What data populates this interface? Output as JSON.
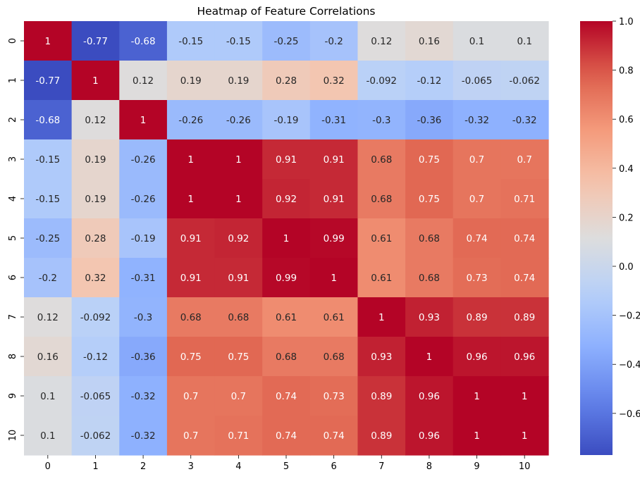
{
  "chart_data": {
    "type": "heatmap",
    "title": "Heatmap of Feature Correlations",
    "xlabel": "",
    "ylabel": "",
    "row_labels": [
      "0",
      "1",
      "2",
      "3",
      "4",
      "5",
      "6",
      "7",
      "8",
      "9",
      "10"
    ],
    "col_labels": [
      "0",
      "1",
      "2",
      "3",
      "4",
      "5",
      "6",
      "7",
      "8",
      "9",
      "10"
    ],
    "matrix": [
      [
        1,
        -0.77,
        -0.68,
        -0.15,
        -0.15,
        -0.25,
        -0.2,
        0.12,
        0.16,
        0.1,
        0.1
      ],
      [
        -0.77,
        1,
        0.12,
        0.19,
        0.19,
        0.28,
        0.32,
        -0.092,
        -0.12,
        -0.065,
        -0.062
      ],
      [
        -0.68,
        0.12,
        1,
        -0.26,
        -0.26,
        -0.19,
        -0.31,
        -0.3,
        -0.36,
        -0.32,
        -0.32
      ],
      [
        -0.15,
        0.19,
        -0.26,
        1,
        1,
        0.91,
        0.91,
        0.68,
        0.75,
        0.7,
        0.7
      ],
      [
        -0.15,
        0.19,
        -0.26,
        1,
        1,
        0.92,
        0.91,
        0.68,
        0.75,
        0.7,
        0.71
      ],
      [
        -0.25,
        0.28,
        -0.19,
        0.91,
        0.92,
        1,
        0.99,
        0.61,
        0.68,
        0.74,
        0.74
      ],
      [
        -0.2,
        0.32,
        -0.31,
        0.91,
        0.91,
        0.99,
        1,
        0.61,
        0.68,
        0.73,
        0.74
      ],
      [
        0.12,
        -0.092,
        -0.3,
        0.68,
        0.68,
        0.61,
        0.61,
        1,
        0.93,
        0.89,
        0.89
      ],
      [
        0.16,
        -0.12,
        -0.36,
        0.75,
        0.75,
        0.68,
        0.68,
        0.93,
        1,
        0.96,
        0.96
      ],
      [
        0.1,
        -0.065,
        -0.32,
        0.7,
        0.7,
        0.74,
        0.73,
        0.89,
        0.96,
        1,
        1
      ],
      [
        0.1,
        -0.062,
        -0.32,
        0.7,
        0.71,
        0.74,
        0.74,
        0.89,
        0.96,
        1,
        1
      ]
    ],
    "colormap": "coolwarm",
    "vmin": -0.77,
    "vmax": 1.0,
    "colorbar_ticks": [
      1.0,
      0.8,
      0.6,
      0.4,
      0.2,
      0.0,
      -0.2,
      -0.4,
      -0.6
    ],
    "colorbar_tick_labels": [
      "1.0",
      "0.8",
      "0.6",
      "0.4",
      "0.2",
      "0.0",
      "−0.2",
      "−0.4",
      "−0.6"
    ],
    "annotations": true,
    "grid": false,
    "legend": "colorbar-right"
  }
}
